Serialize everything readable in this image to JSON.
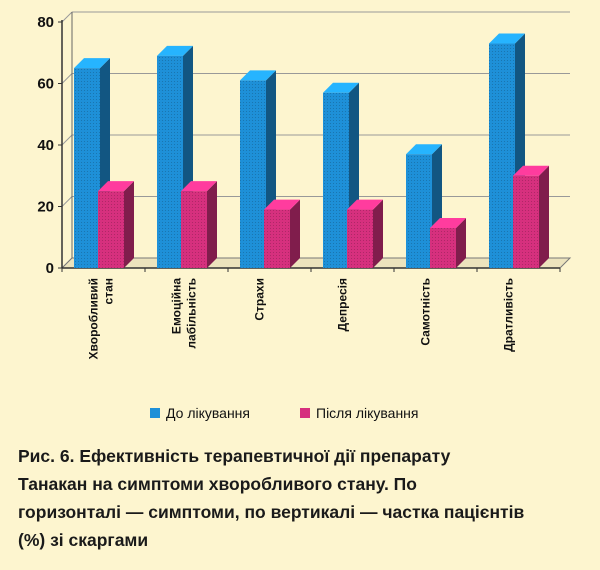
{
  "chart_data": {
    "type": "bar",
    "categories": [
      [
        "Хворобливий",
        "стан"
      ],
      [
        "Емоційна",
        "лабільність"
      ],
      [
        "Страхи"
      ],
      [
        "Депресія"
      ],
      [
        "Самотність"
      ],
      [
        "Дратливість"
      ]
    ],
    "series": [
      {
        "name": "До лікування",
        "values": [
          65,
          69,
          61,
          57,
          37,
          73
        ],
        "color": "#1e90d8"
      },
      {
        "name": "Після лікування",
        "values": [
          25,
          25,
          19,
          19,
          13,
          30
        ],
        "color": "#d6307e"
      }
    ],
    "ylim": [
      0,
      80
    ],
    "yticks": [
      0,
      20,
      40,
      60,
      80
    ],
    "grid": true,
    "legend_position": "bottom"
  },
  "caption": [
    "Рис. 6. Ефективність терапевтичної дії препарату",
    "Танакан на симптоми хворобливого стану. По",
    "горизонталі — симптоми, по вертикалі — частка пацієнтів",
    "(%) зі скаргами"
  ]
}
